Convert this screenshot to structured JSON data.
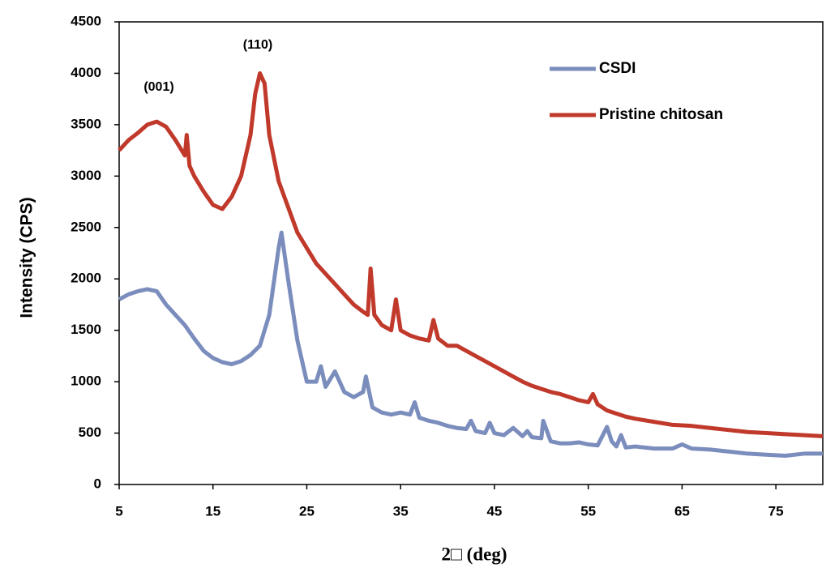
{
  "chart_data": {
    "type": "line",
    "xlabel": "2□ (deg)",
    "ylabel": "Intensity (CPS)",
    "annotations": [
      "(001)",
      "(110)"
    ],
    "xlim": [
      5,
      80
    ],
    "xticks": [
      5,
      15,
      25,
      35,
      45,
      55,
      65,
      75
    ],
    "ylim": [
      0,
      4500
    ],
    "yticks": [
      0,
      500,
      1000,
      1500,
      2000,
      2500,
      3000,
      3500,
      4000,
      4500
    ],
    "series": [
      {
        "name": "CSDI",
        "color": "#7b8dbd",
        "x": [
          5,
          6,
          7,
          8,
          9,
          10,
          11,
          12,
          13,
          14,
          15,
          16,
          17,
          18,
          19,
          20,
          21,
          22,
          22.3,
          23,
          24,
          25,
          26,
          26.5,
          27,
          28,
          29,
          30,
          31,
          31.3,
          32,
          33,
          34,
          35,
          36,
          36.5,
          37,
          38,
          39,
          40,
          41,
          42,
          42.5,
          43,
          44,
          44.5,
          45,
          46,
          47,
          48,
          48.5,
          49,
          50,
          50.2,
          51,
          52,
          53,
          54,
          55,
          56,
          57,
          57.5,
          58,
          58.5,
          59,
          60,
          62,
          64,
          65,
          66,
          68,
          70,
          72,
          74,
          76,
          78,
          80
        ],
        "values": [
          1800,
          1850,
          1880,
          1900,
          1880,
          1750,
          1650,
          1550,
          1420,
          1300,
          1230,
          1190,
          1170,
          1200,
          1260,
          1350,
          1650,
          2300,
          2450,
          2000,
          1400,
          1000,
          1000,
          1150,
          950,
          1100,
          900,
          850,
          900,
          1050,
          750,
          700,
          680,
          700,
          680,
          800,
          650,
          620,
          600,
          570,
          550,
          540,
          620,
          520,
          500,
          600,
          500,
          480,
          550,
          470,
          520,
          460,
          450,
          620,
          420,
          400,
          400,
          410,
          390,
          380,
          560,
          420,
          370,
          480,
          360,
          370,
          350,
          350,
          390,
          350,
          340,
          320,
          300,
          290,
          280,
          300,
          300
        ]
      },
      {
        "name": "Pristine chitosan",
        "color": "#c0392b",
        "x": [
          5,
          6,
          7,
          8,
          9,
          10,
          11,
          12,
          12.2,
          12.5,
          13,
          14,
          15,
          16,
          17,
          18,
          19,
          19.5,
          20,
          20.5,
          21,
          22,
          23,
          24,
          25,
          26,
          27,
          28,
          29,
          30,
          31,
          31.5,
          31.8,
          32.2,
          33,
          34,
          34.5,
          35,
          36,
          37,
          38,
          38.5,
          39,
          40,
          41,
          42,
          43,
          44,
          45,
          46,
          47,
          48,
          49,
          50,
          51,
          52,
          53,
          54,
          55,
          55.5,
          56,
          57,
          58,
          59,
          60,
          62,
          64,
          66,
          68,
          70,
          72,
          74,
          76,
          78,
          80
        ],
        "values": [
          3250,
          3350,
          3420,
          3500,
          3530,
          3480,
          3350,
          3200,
          3400,
          3100,
          3000,
          2850,
          2720,
          2680,
          2800,
          3000,
          3400,
          3800,
          4000,
          3900,
          3400,
          2950,
          2700,
          2450,
          2300,
          2150,
          2050,
          1950,
          1850,
          1750,
          1680,
          1650,
          2100,
          1650,
          1550,
          1500,
          1800,
          1500,
          1450,
          1420,
          1400,
          1600,
          1420,
          1350,
          1350,
          1300,
          1250,
          1200,
          1150,
          1100,
          1050,
          1000,
          960,
          930,
          900,
          880,
          850,
          820,
          800,
          880,
          780,
          720,
          690,
          660,
          640,
          610,
          580,
          570,
          550,
          530,
          510,
          500,
          490,
          480,
          470
        ]
      }
    ]
  }
}
